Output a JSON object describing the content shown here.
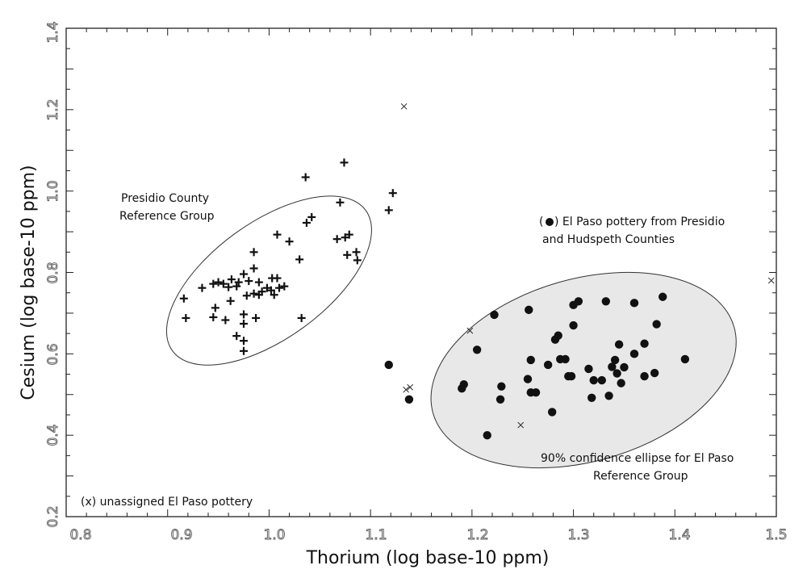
{
  "chart_data": {
    "type": "scatter",
    "xlabel": "Thorium (log base-10 ppm)",
    "ylabel": "Cesium (log base-10 ppm)",
    "xlim": [
      0.8,
      1.5
    ],
    "ylim": [
      0.2,
      1.4
    ],
    "x_ticks": [
      "0.8",
      "0.9",
      "1.0",
      "1.1",
      "1.2",
      "1.3",
      "1.4",
      "1.5"
    ],
    "y_ticks": [
      "0.2",
      "0.4",
      "0.6",
      "0.8",
      "1.0",
      "1.2",
      "1.4"
    ],
    "grid": false,
    "annotations": {
      "presidio_label": [
        "Presidio County",
        "Reference Group"
      ],
      "el_paso_label_prefix": "(",
      "el_paso_label_suffix": ") El Paso pottery from Presidio",
      "el_paso_label_line2": "and Hudspeth Counties",
      "ellipse_label": [
        "90% confidence ellipse for El Paso",
        "Reference Group"
      ],
      "unassigned_label": "(x) unassigned El Paso pottery"
    },
    "ellipses": [
      {
        "group": "Presidio County Reference Group",
        "center": [
          1.0,
          0.78
        ],
        "filled": false
      },
      {
        "group": "El Paso Reference Group",
        "center": [
          1.31,
          0.56
        ],
        "filled": true,
        "fill": "#e8e8e8"
      }
    ],
    "series": [
      {
        "name": "Presidio County Reference Group",
        "marker": "plus",
        "points": [
          [
            0.916,
            0.736
          ],
          [
            0.918,
            0.688
          ],
          [
            0.934,
            0.762
          ],
          [
            0.945,
            0.772
          ],
          [
            0.95,
            0.776
          ],
          [
            0.955,
            0.772
          ],
          [
            0.963,
            0.783
          ],
          [
            0.97,
            0.776
          ],
          [
            0.975,
            0.796
          ],
          [
            0.98,
            0.779
          ],
          [
            0.99,
            0.776
          ],
          [
            0.998,
            0.762
          ],
          [
            1.003,
            0.786
          ],
          [
            1.008,
            0.786
          ],
          [
            0.96,
            0.764
          ],
          [
            0.968,
            0.766
          ],
          [
            0.985,
            0.748
          ],
          [
            0.993,
            0.753
          ],
          [
            1.002,
            0.756
          ],
          [
            1.01,
            0.762
          ],
          [
            1.015,
            0.766
          ],
          [
            0.947,
            0.713
          ],
          [
            0.962,
            0.73
          ],
          [
            0.978,
            0.743
          ],
          [
            0.99,
            0.745
          ],
          [
            1.005,
            0.745
          ],
          [
            0.945,
            0.69
          ],
          [
            0.957,
            0.683
          ],
          [
            0.975,
            0.697
          ],
          [
            0.975,
            0.674
          ],
          [
            0.987,
            0.688
          ],
          [
            0.968,
            0.644
          ],
          [
            0.975,
            0.632
          ],
          [
            0.975,
            0.607
          ],
          [
            0.985,
            0.81
          ],
          [
            0.985,
            0.85
          ],
          [
            1.008,
            0.893
          ],
          [
            1.02,
            0.876
          ],
          [
            1.03,
            0.832
          ],
          [
            1.037,
            0.922
          ],
          [
            1.042,
            0.936
          ],
          [
            1.036,
            1.034
          ],
          [
            1.067,
            0.882
          ],
          [
            1.07,
            0.972
          ],
          [
            1.074,
            1.07
          ],
          [
            1.075,
            0.886
          ],
          [
            1.079,
            0.893
          ],
          [
            1.077,
            0.843
          ],
          [
            1.086,
            0.85
          ],
          [
            1.087,
            0.83
          ],
          [
            1.118,
            0.953
          ],
          [
            1.122,
            0.995
          ],
          [
            1.032,
            0.688
          ]
        ]
      },
      {
        "name": "El Paso pottery from Presidio and Hudspeth Counties",
        "marker": "dot",
        "points": [
          [
            1.118,
            0.573
          ],
          [
            1.138,
            0.488
          ],
          [
            1.19,
            0.515
          ],
          [
            1.192,
            0.525
          ],
          [
            1.205,
            0.61
          ],
          [
            1.215,
            0.4
          ],
          [
            1.222,
            0.696
          ],
          [
            1.228,
            0.488
          ],
          [
            1.229,
            0.52
          ],
          [
            1.255,
            0.538
          ],
          [
            1.256,
            0.708
          ],
          [
            1.258,
            0.585
          ],
          [
            1.258,
            0.505
          ],
          [
            1.263,
            0.505
          ],
          [
            1.275,
            0.573
          ],
          [
            1.279,
            0.457
          ],
          [
            1.282,
            0.635
          ],
          [
            1.285,
            0.645
          ],
          [
            1.287,
            0.587
          ],
          [
            1.292,
            0.587
          ],
          [
            1.295,
            0.545
          ],
          [
            1.298,
            0.545
          ],
          [
            1.3,
            0.67
          ],
          [
            1.3,
            0.72
          ],
          [
            1.305,
            0.729
          ],
          [
            1.315,
            0.563
          ],
          [
            1.318,
            0.492
          ],
          [
            1.32,
            0.535
          ],
          [
            1.328,
            0.535
          ],
          [
            1.332,
            0.729
          ],
          [
            1.335,
            0.497
          ],
          [
            1.338,
            0.568
          ],
          [
            1.341,
            0.585
          ],
          [
            1.343,
            0.552
          ],
          [
            1.345,
            0.623
          ],
          [
            1.347,
            0.528
          ],
          [
            1.35,
            0.567
          ],
          [
            1.36,
            0.725
          ],
          [
            1.36,
            0.6
          ],
          [
            1.37,
            0.625
          ],
          [
            1.37,
            0.545
          ],
          [
            1.38,
            0.553
          ],
          [
            1.382,
            0.673
          ],
          [
            1.388,
            0.74
          ],
          [
            1.41,
            0.587
          ]
        ]
      },
      {
        "name": "unassigned El Paso pottery",
        "marker": "x",
        "points": [
          [
            1.133,
            1.208
          ],
          [
            1.135,
            0.512
          ],
          [
            1.139,
            0.518
          ],
          [
            1.198,
            0.657
          ],
          [
            1.248,
            0.425
          ],
          [
            1.495,
            0.78
          ]
        ]
      }
    ]
  }
}
